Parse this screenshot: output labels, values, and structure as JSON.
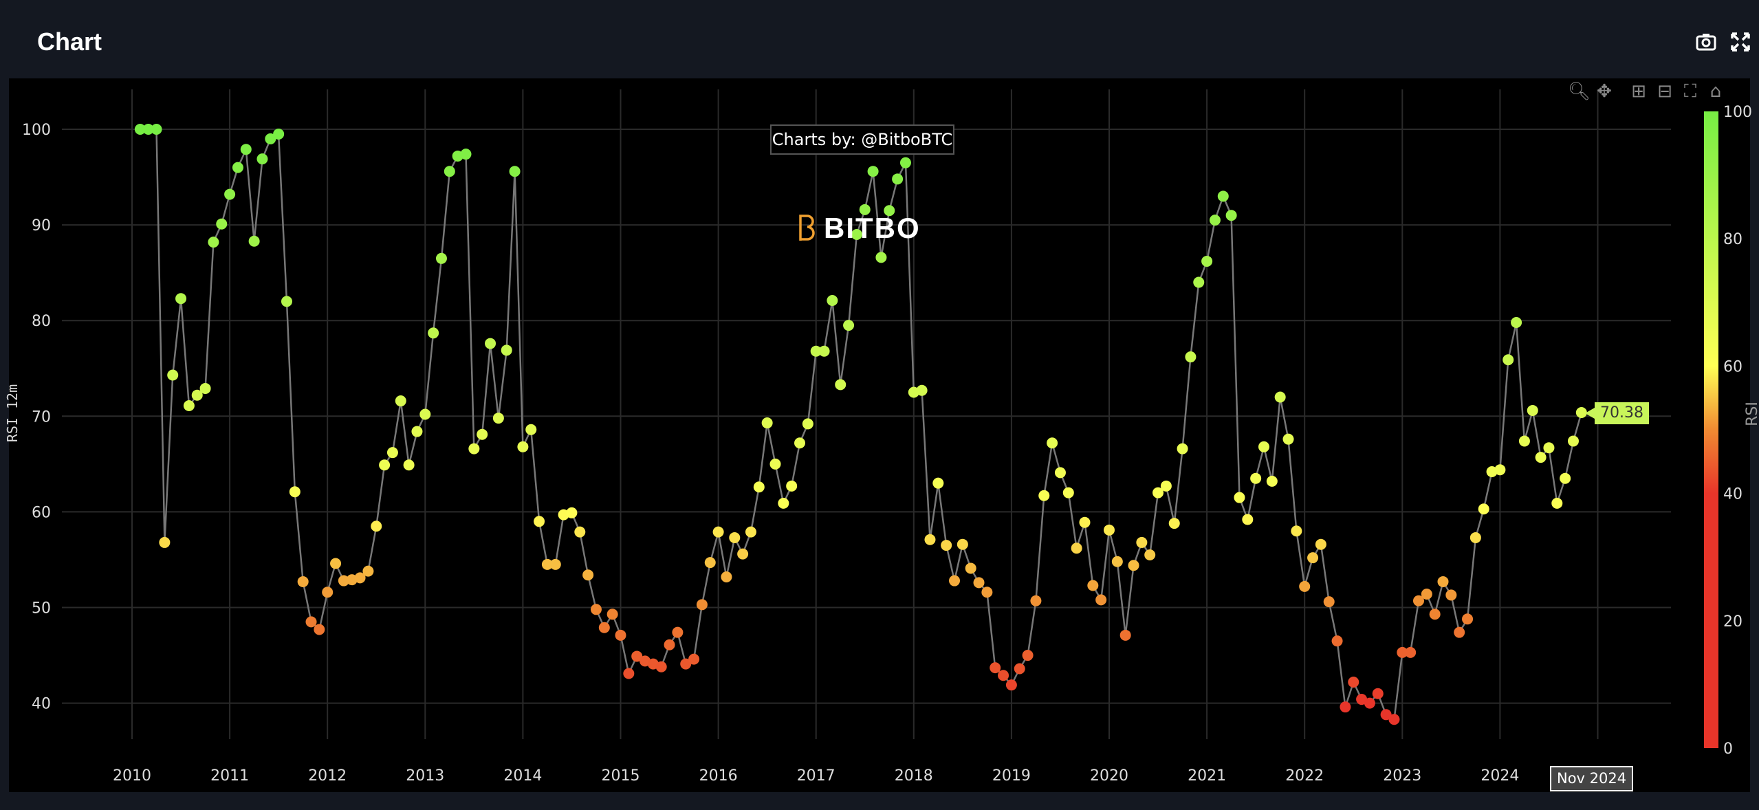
{
  "header": {
    "title": "Chart",
    "camera_icon": "camera-icon",
    "fullscreen_icon": "expand-icon"
  },
  "watermark": {
    "credit": "Charts by: @BitboBTC",
    "logo": "BITBO"
  },
  "hover": {
    "value": "70.38",
    "date": "Nov 2024"
  },
  "modebar": [
    "zoom-icon",
    "pan-icon",
    "zoom-in-icon",
    "zoom-out-icon",
    "autoscale-icon",
    "home-icon"
  ],
  "colors": {
    "line": "#777777",
    "stops": [
      [
        0,
        "#e8352a"
      ],
      [
        40,
        "#e8352a"
      ],
      [
        50,
        "#f08a32"
      ],
      [
        60,
        "#ffff55"
      ],
      [
        100,
        "#77ee44"
      ]
    ]
  },
  "chart_data": {
    "type": "scatter",
    "mode": "lines+markers",
    "ylabel": "RSI 12m",
    "colorbar_title": "RSI",
    "colorbar_ticks": [
      0,
      20,
      40,
      60,
      80,
      100
    ],
    "ylim": [
      36,
      104
    ],
    "yticks": [
      40,
      50,
      60,
      70,
      80,
      90,
      100
    ],
    "xticks": [
      "2010",
      "2011",
      "2012",
      "2013",
      "2014",
      "2015",
      "2016",
      "2017",
      "2018",
      "2019",
      "2020",
      "2021",
      "2022",
      "2023",
      "2024"
    ],
    "start": "2010-02",
    "end": "2024-11",
    "frequency": "monthly",
    "values": [
      100,
      100,
      100,
      56.8,
      74.3,
      82.3,
      71.1,
      72.2,
      72.9,
      88.2,
      90.1,
      93.2,
      96.0,
      97.9,
      88.3,
      96.9,
      99.0,
      99.5,
      82.0,
      62.1,
      52.7,
      48.5,
      47.7,
      51.6,
      54.6,
      52.8,
      52.9,
      53.1,
      53.8,
      58.5,
      64.9,
      66.2,
      71.6,
      64.9,
      68.4,
      70.2,
      78.7,
      86.5,
      95.6,
      97.2,
      97.4,
      66.6,
      68.1,
      77.6,
      69.8,
      76.9,
      95.6,
      66.8,
      68.6,
      59.0,
      54.5,
      54.5,
      59.7,
      59.9,
      57.9,
      53.4,
      49.8,
      47.9,
      49.3,
      47.1,
      43.1,
      44.9,
      44.4,
      44.1,
      43.8,
      46.1,
      47.4,
      44.1,
      44.6,
      50.3,
      54.7,
      57.9,
      53.2,
      57.3,
      55.6,
      57.9,
      62.6,
      69.3,
      65.0,
      60.9,
      62.7,
      67.2,
      69.2,
      76.8,
      76.8,
      82.1,
      73.3,
      79.5,
      89.0,
      91.6,
      95.6,
      86.6,
      91.5,
      94.8,
      96.5,
      72.5,
      72.7,
      57.1,
      63.0,
      56.5,
      52.8,
      56.6,
      54.1,
      52.6,
      51.6,
      43.7,
      42.9,
      41.9,
      43.6,
      45.0,
      50.7,
      61.7,
      67.2,
      64.1,
      62.0,
      56.2,
      58.9,
      52.3,
      50.8,
      58.1,
      54.8,
      47.1,
      54.4,
      56.8,
      55.5,
      62.0,
      62.7,
      58.8,
      66.6,
      76.2,
      84.0,
      86.2,
      90.5,
      93.0,
      91.0,
      61.5,
      59.2,
      63.5,
      66.8,
      63.2,
      72.0,
      67.6,
      58.0,
      52.2,
      55.2,
      56.6,
      50.6,
      46.5,
      39.6,
      42.2,
      40.4,
      40.0,
      41.0,
      38.8,
      38.3,
      45.3,
      45.3,
      50.7,
      51.4,
      49.3,
      52.7,
      51.3,
      47.4,
      48.8,
      57.3,
      60.3,
      64.2,
      64.4,
      75.9,
      79.8,
      67.4,
      70.6,
      65.7,
      66.7,
      60.9,
      63.5,
      67.4,
      70.38
    ]
  }
}
